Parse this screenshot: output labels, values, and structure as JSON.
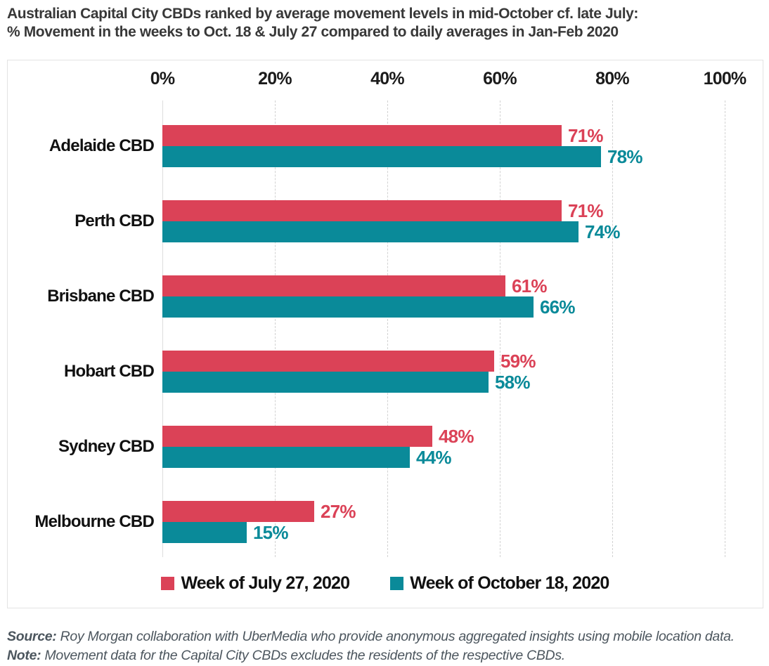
{
  "title": {
    "line1": "Australian Capital City CBDs ranked by average movement levels in mid-October cf. late July:",
    "line2": "% Movement in the weeks to Oct. 18 & July 27 compared to daily averages in Jan-Feb 2020"
  },
  "chart_data": {
    "type": "bar",
    "orientation": "horizontal",
    "title": "Australian Capital City CBDs ranked by average movement levels in mid-October cf. late July: % Movement in the weeks to Oct. 18 & July 27 compared to daily averages in Jan-Feb 2020",
    "categories": [
      "Adelaide CBD",
      "Perth CBD",
      "Brisbane CBD",
      "Hobart CBD",
      "Sydney CBD",
      "Melbourne CBD"
    ],
    "series": [
      {
        "name": "Week of July 27, 2020",
        "color": "#db4257",
        "values": [
          71,
          71,
          61,
          59,
          48,
          27
        ]
      },
      {
        "name": "Week of October 18, 2020",
        "color": "#0a8a99",
        "values": [
          78,
          74,
          66,
          58,
          44,
          15
        ]
      }
    ],
    "value_suffix": "%",
    "x_axis": {
      "position": "top",
      "min": 0,
      "max": 100,
      "ticks": [
        "0%",
        "20%",
        "40%",
        "60%",
        "80%",
        "100%"
      ],
      "grid": "dashed-vertical"
    },
    "legend_position": "bottom"
  },
  "footnote": {
    "source_label": "Source:",
    "source_text": " Roy Morgan collaboration with UberMedia who provide anonymous aggregated insights using mobile location data. ",
    "note_label": "Note:",
    "note_text": " Movement data for the Capital City CBDs excludes the residents of the respective CBDs."
  },
  "colors": {
    "series_july": "#db4257",
    "series_october": "#0a8a99",
    "gridline": "#d2d2d2",
    "panel_border": "#e3e3e3",
    "title_text": "#383838",
    "footnote_text": "#4c565e"
  }
}
